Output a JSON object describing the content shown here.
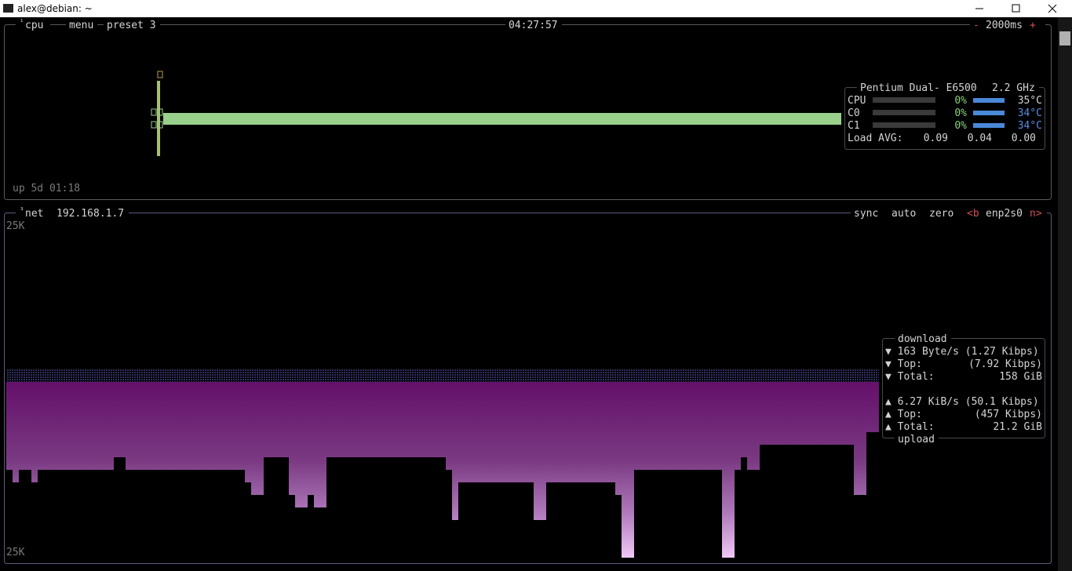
{
  "window": {
    "title": "alex@debian: ~"
  },
  "cpu_box": {
    "number": "¹",
    "label": "cpu",
    "menu": "menu",
    "preset": "preset 3",
    "clock": "04:27:57",
    "minus": "-",
    "interval": "2000ms",
    "plus": "+",
    "uptime": "up 5d 01:18",
    "cpu_name": "Pentium Dual- E6500",
    "frequency": "2.2 GHz",
    "cores": [
      {
        "name": "CPU",
        "percent": "0%",
        "temp": "35°C"
      },
      {
        "name": "C0",
        "percent": "0%",
        "temp": "34°C"
      },
      {
        "name": "C1",
        "percent": "0%",
        "temp": "34°C"
      }
    ],
    "load_label": "Load AVG:",
    "load": [
      "0.09",
      "0.04",
      "0.00"
    ]
  },
  "net_box": {
    "number": "³",
    "label": "net",
    "ip": "192.168.1.7",
    "sync": "sync",
    "auto": "auto",
    "zero": "zero",
    "prev": "<b",
    "interface": "enp2s0",
    "next": "n>",
    "scale_top": "25K",
    "scale_bottom": "25K",
    "download": {
      "title": "download",
      "rate": "▼ 163 Byte/s (1.27 Kibps)",
      "top_label": "▼ Top:",
      "top": "(7.92 Kibps)",
      "total_label": "▼ Total:",
      "total": "158 GiB"
    },
    "upload": {
      "title": "upload",
      "rate": "▲ 6.27 KiB/s (50.1 Kibps)",
      "top_label": "▲ Top:",
      "top": "(457 Kibps)",
      "total_label": "▲ Total:",
      "total": "21.2 GiB"
    }
  }
}
